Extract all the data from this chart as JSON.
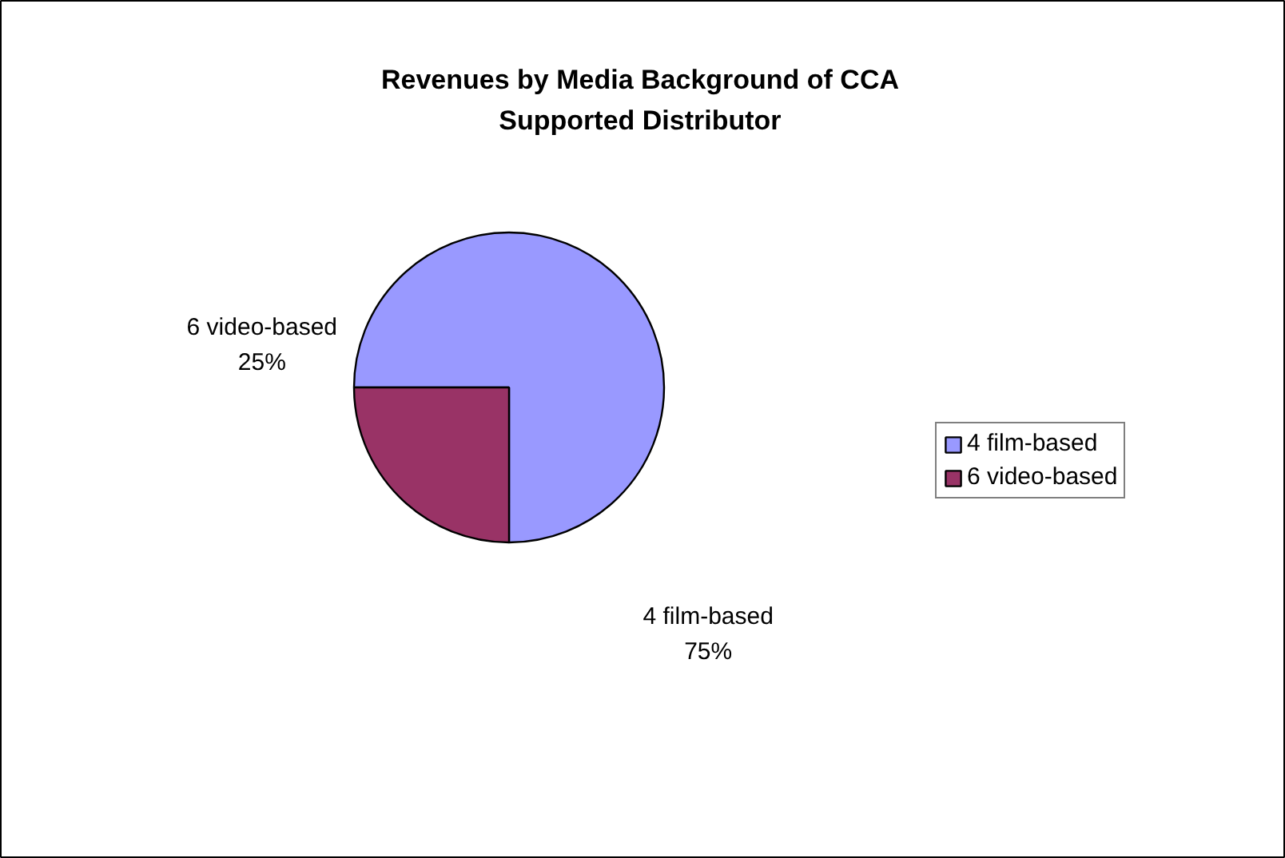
{
  "chart_data": {
    "type": "pie",
    "title": "Revenues by Media Background of CCA\nSupported Distributor",
    "categories": [
      "4 film-based",
      "6 video-based"
    ],
    "values": [
      75,
      25
    ],
    "colors": [
      "#9999ff",
      "#993366"
    ],
    "value_labels": [
      "75%",
      "25%"
    ],
    "legend": "right"
  }
}
